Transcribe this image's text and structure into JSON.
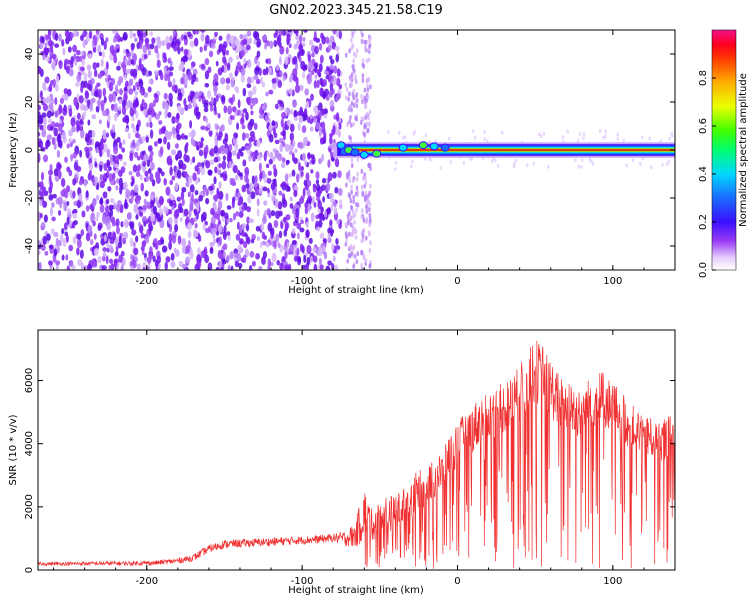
{
  "figure": {
    "title": "GN02.2023.345.21.58.C19"
  },
  "colors": {
    "snr_line": "#f03030",
    "spectrogram_noise": "#7a1cf0",
    "spectrogram_faint": "#d8b8f8",
    "track_core": "#e02020",
    "axes": "#000000"
  },
  "chart_data": [
    {
      "type": "heatmap",
      "title": "GN02.2023.345.21.58.C19",
      "xlabel": "Height of straight line (km)",
      "ylabel": "Frequency (Hz)",
      "xlim": [
        -270,
        140
      ],
      "ylim": [
        -50,
        50
      ],
      "xticks": [
        -200,
        -100,
        0,
        100
      ],
      "xtick_labels": [
        "-200",
        "-100",
        "0",
        "100"
      ],
      "yticks": [
        -40,
        -20,
        0,
        20,
        40
      ],
      "ytick_labels": [
        "-40",
        "-20",
        "0",
        "20",
        "40"
      ],
      "colorbar": {
        "label": "Normalized spectral amplitude",
        "range": [
          0,
          1
        ],
        "ticks": [
          0.0,
          0.2,
          0.4,
          0.6,
          0.8
        ],
        "tick_labels": [
          "0.0",
          "0.2",
          "0.4",
          "0.6",
          "0.8"
        ],
        "colormap": "rainbow (white → purple → blue → cyan → green → yellow → orange → red → magenta)"
      },
      "regions": [
        {
          "description": "broadband noise",
          "x_range": [
            -270,
            -75
          ],
          "freq_range": [
            -50,
            50
          ],
          "amplitude": 0.15
        },
        {
          "description": "transition bands",
          "x_range": [
            -75,
            -55
          ],
          "freq_range": [
            -50,
            50
          ],
          "amplitude": 0.1
        },
        {
          "description": "narrow-band signal near 0 Hz",
          "x_range": [
            -80,
            140
          ],
          "freq_center": 0,
          "half_width_hz": 2,
          "amplitude": 0.95
        }
      ],
      "grid": false
    },
    {
      "type": "line",
      "xlabel": "Height of straight line (km)",
      "ylabel": "SNR (10 * v/v)",
      "xlim": [
        -270,
        140
      ],
      "ylim": [
        0,
        7600
      ],
      "xticks": [
        -200,
        -100,
        0,
        100
      ],
      "xtick_labels": [
        "-200",
        "-100",
        "0",
        "100"
      ],
      "yticks": [
        0,
        2000,
        4000,
        6000
      ],
      "ytick_labels": [
        "0",
        "2000",
        "4000",
        "6000"
      ],
      "grid": false,
      "series": [
        {
          "color": "#f03030",
          "x": [
            -270,
            -250,
            -230,
            -210,
            -195,
            -180,
            -170,
            -160,
            -150,
            -130,
            -110,
            -90,
            -80,
            -72,
            -66,
            -60,
            -55,
            -50,
            -45,
            -40,
            -35,
            -30,
            -25,
            -20,
            -15,
            -10,
            -5,
            0,
            5,
            10,
            15,
            20,
            25,
            30,
            35,
            40,
            45,
            50,
            55,
            60,
            65,
            70,
            75,
            80,
            85,
            90,
            95,
            100,
            105,
            110,
            115,
            120,
            125,
            130,
            135,
            140
          ],
          "upper": [
            250,
            260,
            270,
            280,
            300,
            380,
            500,
            800,
            950,
            1000,
            1050,
            1100,
            1150,
            1250,
            1500,
            2700,
            1900,
            2200,
            2450,
            2300,
            2700,
            3000,
            3150,
            3300,
            3600,
            3700,
            4300,
            4700,
            5000,
            5300,
            5500,
            5650,
            5800,
            5950,
            6150,
            6500,
            6900,
            7350,
            7100,
            6700,
            6250,
            6000,
            5950,
            5850,
            6100,
            6400,
            6200,
            6000,
            5700,
            5300,
            5150,
            5000,
            4800,
            4700,
            4850,
            5000
          ],
          "lower": [
            100,
            100,
            100,
            100,
            100,
            150,
            200,
            450,
            600,
            650,
            700,
            750,
            800,
            600,
            400,
            300,
            600,
            700,
            800,
            900,
            1000,
            1200,
            1400,
            1600,
            1800,
            2000,
            2400,
            2800,
            3000,
            3200,
            3400,
            3600,
            3700,
            3800,
            3900,
            4100,
            4300,
            4600,
            4500,
            4200,
            3900,
            3700,
            3600,
            3600,
            3800,
            4000,
            3900,
            3800,
            3600,
            3400,
            3300,
            3200,
            3100,
            3000,
            3100,
            3200
          ]
        }
      ]
    }
  ]
}
